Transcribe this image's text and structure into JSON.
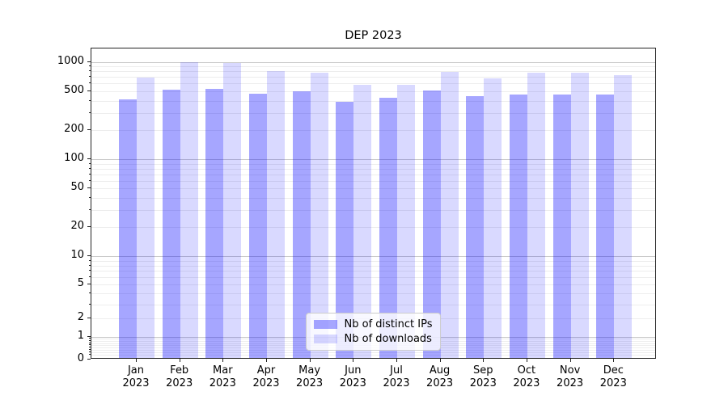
{
  "chart_data": {
    "type": "bar",
    "title": "DEP 2023",
    "categories": [
      "Jan",
      "Feb",
      "Mar",
      "Apr",
      "May",
      "Jun",
      "Jul",
      "Aug",
      "Sep",
      "Oct",
      "Nov",
      "Dec"
    ],
    "category_year": "2023",
    "series": [
      {
        "name": "Nb of distinct IPs",
        "color": "rgba(0,0,255,0.35)",
        "values": [
          394,
          496,
          505,
          456,
          480,
          371,
          414,
          486,
          428,
          447,
          442,
          442
        ]
      },
      {
        "name": "Nb of downloads",
        "color": "rgba(0,0,255,0.15)",
        "values": [
          660,
          955,
          931,
          770,
          747,
          556,
          556,
          760,
          648,
          749,
          749,
          703
        ]
      }
    ],
    "xlabel": "",
    "ylabel": "",
    "y_axis": {
      "scale": "asinh",
      "tick_values": [
        0,
        1,
        2,
        5,
        10,
        20,
        50,
        100,
        200,
        500,
        1000
      ],
      "tick_labels": [
        "0",
        "1",
        "2",
        "5",
        "10",
        "20",
        "50",
        "100",
        "200",
        "500",
        "1000"
      ],
      "major_grid_values": [
        1,
        10,
        100,
        1000
      ],
      "ylim": [
        0,
        1370
      ],
      "grid": true
    },
    "legend_position": "lower center",
    "colors": {
      "grid_major": "#c8c8c8",
      "grid_minor": "#ededed",
      "spine": "#222222"
    }
  }
}
